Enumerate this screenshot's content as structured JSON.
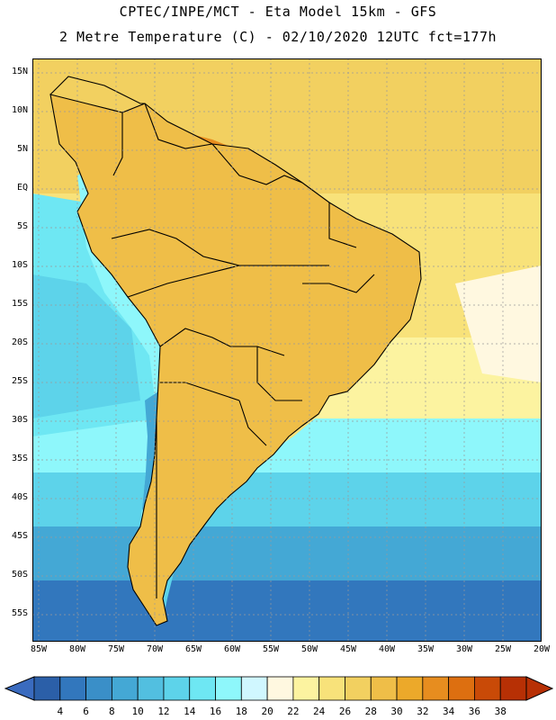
{
  "header": {
    "line1": "CPTEC/INPE/MCT -  Eta Model 15km - GFS",
    "line2": "2 Metre Temperature (C) - 02/10/2020 12UTC fct=177h"
  },
  "map": {
    "lat_labels": [
      "15N",
      "10N",
      "5N",
      "EQ",
      "5S",
      "10S",
      "15S",
      "20S",
      "25S",
      "30S",
      "35S",
      "40S",
      "45S",
      "50S",
      "55S"
    ],
    "lon_labels": [
      "85W",
      "80W",
      "75W",
      "70W",
      "65W",
      "60W",
      "55W",
      "50W",
      "45W",
      "40W",
      "35W",
      "30W",
      "25W",
      "20W"
    ],
    "extent": {
      "lon_min": -86,
      "lon_max": -19,
      "lat_min": -58,
      "lat_max": 17
    },
    "colors": {
      "t4": "#2b5fa8",
      "t6": "#3277bd",
      "t8": "#3a8fc8",
      "t10": "#44a8d5",
      "t12": "#52bfe0",
      "t14": "#5dd3ea",
      "t16": "#6ee7f3",
      "t18": "#8ef7fb",
      "t20": "#d0f7ff",
      "t22": "#fff8e0",
      "t24": "#fcf3a0",
      "t26": "#f8e27a",
      "t28": "#f2d060",
      "t30": "#efbe48",
      "t32": "#eca92a",
      "t34": "#e78d1f",
      "t36": "#dd6f10",
      "t38": "#c94a07",
      "t40": "#b73005",
      "border": "#000000",
      "grid": "#9a9a9a"
    }
  },
  "colorbar": {
    "labels": [
      "4",
      "6",
      "8",
      "10",
      "12",
      "14",
      "16",
      "18",
      "20",
      "22",
      "24",
      "26",
      "28",
      "30",
      "32",
      "34",
      "36",
      "38"
    ],
    "colors": [
      "#2b5fa8",
      "#3277bd",
      "#3a8fc8",
      "#44a8d5",
      "#52bfe0",
      "#5dd3ea",
      "#6ee7f3",
      "#8ef7fb",
      "#d0f7ff",
      "#fff8e0",
      "#fcf3a0",
      "#f8e27a",
      "#f2d060",
      "#efbe48",
      "#eca92a",
      "#e78d1f",
      "#dd6f10",
      "#c94a07",
      "#b73005"
    ],
    "low_arrow_color": "#3a6bbf",
    "high_arrow_color": "#b73005"
  }
}
